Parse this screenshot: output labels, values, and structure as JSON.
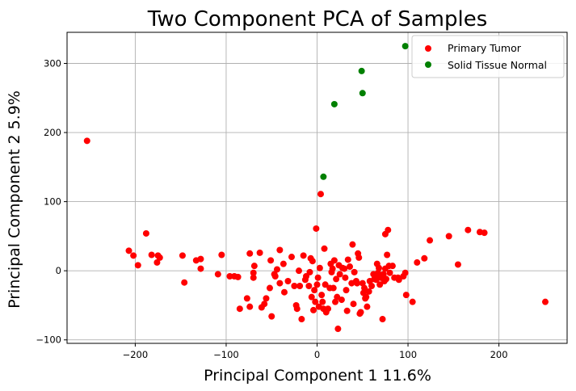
{
  "chart_data": {
    "type": "scatter",
    "title": "Two Component PCA of Samples",
    "xlabel": "Principal Component 1 11.6%",
    "ylabel": "Principal Component 2 5.9%",
    "xlim": [
      -275,
      275
    ],
    "ylim": [
      -105,
      345
    ],
    "xticks": [
      -200,
      -100,
      0,
      100,
      200
    ],
    "yticks": [
      -100,
      0,
      100,
      200,
      300
    ],
    "xtick_labels": [
      "−200",
      "−100",
      "0",
      "100",
      "200"
    ],
    "ytick_labels": [
      "−100",
      "0",
      "100",
      "200",
      "300"
    ],
    "grid": true,
    "legend_position": "top-right",
    "series": [
      {
        "name": "Primary Tumor",
        "color": "#ff0000",
        "points": [
          [
            -253,
            188
          ],
          [
            -207,
            29
          ],
          [
            -202,
            22
          ],
          [
            -197,
            8
          ],
          [
            -188,
            54
          ],
          [
            -182,
            23
          ],
          [
            -176,
            12
          ],
          [
            -173,
            19
          ],
          [
            -175,
            22
          ],
          [
            -148,
            22
          ],
          [
            -146,
            -17
          ],
          [
            -133,
            15
          ],
          [
            -128,
            17
          ],
          [
            -128,
            3
          ],
          [
            -109,
            -5
          ],
          [
            -105,
            23
          ],
          [
            -96,
            -8
          ],
          [
            -91,
            -8
          ],
          [
            -87,
            -9
          ],
          [
            -85,
            -55
          ],
          [
            -77,
            -40
          ],
          [
            -74,
            -52
          ],
          [
            -74,
            25
          ],
          [
            -70,
            -10
          ],
          [
            -70,
            -3
          ],
          [
            -69,
            7
          ],
          [
            -63,
            26
          ],
          [
            -61,
            -53
          ],
          [
            -58,
            -48
          ],
          [
            -56,
            -40
          ],
          [
            -52,
            -25
          ],
          [
            -51,
            15
          ],
          [
            -50,
            -66
          ],
          [
            -47,
            -5
          ],
          [
            -46,
            -8
          ],
          [
            -44,
            2
          ],
          [
            -41,
            -18
          ],
          [
            -41,
            30
          ],
          [
            -37,
            10
          ],
          [
            -36,
            -31
          ],
          [
            -32,
            -15
          ],
          [
            -28,
            20
          ],
          [
            -25,
            -22
          ],
          [
            -23,
            -50
          ],
          [
            -22,
            -55
          ],
          [
            -20,
            0
          ],
          [
            -19,
            -22
          ],
          [
            -17,
            -70
          ],
          [
            -15,
            22
          ],
          [
            -13,
            -13
          ],
          [
            -12,
            -8
          ],
          [
            -9,
            -22
          ],
          [
            -8,
            -2
          ],
          [
            -7,
            18
          ],
          [
            -6,
            -38
          ],
          [
            -5,
            14
          ],
          [
            -4,
            -57
          ],
          [
            -3,
            -28
          ],
          [
            -2,
            -45
          ],
          [
            -1,
            61
          ],
          [
            0,
            -20
          ],
          [
            1,
            -10
          ],
          [
            2,
            -52
          ],
          [
            3,
            4
          ],
          [
            4,
            111
          ],
          [
            5,
            -35
          ],
          [
            6,
            -45
          ],
          [
            7,
            -55
          ],
          [
            8,
            32
          ],
          [
            9,
            -20
          ],
          [
            10,
            -60
          ],
          [
            12,
            -55
          ],
          [
            14,
            -25
          ],
          [
            15,
            10
          ],
          [
            16,
            -2
          ],
          [
            17,
            3
          ],
          [
            18,
            -25
          ],
          [
            19,
            15
          ],
          [
            20,
            -45
          ],
          [
            21,
            -12
          ],
          [
            22,
            -38
          ],
          [
            23,
            -84
          ],
          [
            24,
            8
          ],
          [
            25,
            -5
          ],
          [
            27,
            -42
          ],
          [
            28,
            4
          ],
          [
            30,
            3
          ],
          [
            31,
            -10
          ],
          [
            32,
            -28
          ],
          [
            33,
            -58
          ],
          [
            34,
            16
          ],
          [
            36,
            6
          ],
          [
            38,
            -18
          ],
          [
            39,
            38
          ],
          [
            40,
            -48
          ],
          [
            41,
            -2
          ],
          [
            43,
            -15
          ],
          [
            44,
            -18
          ],
          [
            45,
            25
          ],
          [
            46,
            19
          ],
          [
            47,
            -62
          ],
          [
            48,
            -60
          ],
          [
            50,
            -18
          ],
          [
            51,
            -32
          ],
          [
            52,
            -25
          ],
          [
            53,
            -40
          ],
          [
            54,
            -38
          ],
          [
            55,
            -52
          ],
          [
            57,
            -30
          ],
          [
            58,
            -15
          ],
          [
            60,
            -22
          ],
          [
            62,
            -5
          ],
          [
            63,
            -12
          ],
          [
            64,
            -8
          ],
          [
            65,
            -13
          ],
          [
            66,
            10
          ],
          [
            67,
            -3
          ],
          [
            68,
            4
          ],
          [
            69,
            -20
          ],
          [
            70,
            -10
          ],
          [
            71,
            -8
          ],
          [
            72,
            -70
          ],
          [
            73,
            -5
          ],
          [
            74,
            -15
          ],
          [
            75,
            3
          ],
          [
            75,
            53
          ],
          [
            76,
            -12
          ],
          [
            77,
            23
          ],
          [
            78,
            59
          ],
          [
            79,
            7
          ],
          [
            80,
            -3
          ],
          [
            83,
            7
          ],
          [
            85,
            -10
          ],
          [
            89,
            -10
          ],
          [
            90,
            -13
          ],
          [
            95,
            -8
          ],
          [
            97,
            -3
          ],
          [
            98,
            -35
          ],
          [
            105,
            -45
          ],
          [
            110,
            12
          ],
          [
            118,
            18
          ],
          [
            124,
            44
          ],
          [
            145,
            50
          ],
          [
            155,
            9
          ],
          [
            166,
            59
          ],
          [
            179,
            56
          ],
          [
            184,
            55
          ],
          [
            251,
            -45
          ]
        ]
      },
      {
        "name": "Solid Tissue Normal",
        "color": "#008000",
        "points": [
          [
            7,
            136
          ],
          [
            19,
            241
          ],
          [
            49,
            289
          ],
          [
            50,
            257
          ],
          [
            97,
            325
          ]
        ]
      }
    ]
  }
}
